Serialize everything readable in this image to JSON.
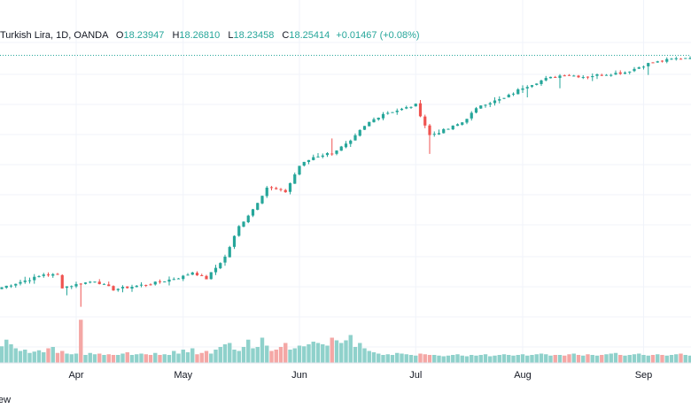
{
  "legend": {
    "symbol": "Turkish Lira, 1D, OANDA",
    "open_label": "O",
    "open": "18.23947",
    "high_label": "H",
    "high": "18.26810",
    "low_label": "L",
    "low": "18.23458",
    "close_label": "C",
    "close": "18.25414",
    "change": "+0.01467 (+0.08%)"
  },
  "footer": {
    "text": "ew"
  },
  "colors": {
    "up": "#26a69a",
    "down": "#ef5350",
    "up_vol": "#8fd1cb",
    "down_vol": "#f4a7a5",
    "grid": "#f0f3fa"
  },
  "chart_data": {
    "type": "candlestick",
    "title": "Turkish Lira, 1D, OANDA",
    "x_axis": {
      "tick_labels": [
        "Apr",
        "May",
        "Jun",
        "Jul",
        "Aug",
        "Sep"
      ]
    },
    "y_axis": {
      "range": [
        17.55,
        18.3
      ],
      "visible_labels": false
    },
    "last_price_line": 18.25414,
    "series": [
      {
        "name": "price",
        "anchors": [
          [
            0,
            17.72
          ],
          [
            8,
            17.745
          ],
          [
            9,
            17.75
          ],
          [
            12,
            17.748
          ],
          [
            13,
            17.72
          ],
          [
            20,
            17.735
          ],
          [
            24,
            17.715
          ],
          [
            33,
            17.73
          ],
          [
            39,
            17.745
          ],
          [
            41,
            17.755
          ],
          [
            44,
            17.74
          ],
          [
            48,
            17.79
          ],
          [
            51,
            17.86
          ],
          [
            54,
            17.9
          ],
          [
            57,
            17.95
          ],
          [
            61,
            17.94
          ],
          [
            64,
            18.0
          ],
          [
            67,
            18.02
          ],
          [
            71,
            18.03
          ],
          [
            75,
            18.055
          ],
          [
            77,
            18.08
          ],
          [
            79,
            18.1
          ],
          [
            82,
            18.12
          ],
          [
            86,
            18.13
          ],
          [
            89,
            18.14
          ],
          [
            92,
            18.07
          ],
          [
            96,
            18.085
          ],
          [
            99,
            18.1
          ],
          [
            103,
            18.14
          ],
          [
            108,
            18.155
          ],
          [
            112,
            18.18
          ],
          [
            117,
            18.2
          ],
          [
            121,
            18.21
          ],
          [
            125,
            18.205
          ],
          [
            129,
            18.21
          ],
          [
            134,
            18.215
          ],
          [
            139,
            18.235
          ],
          [
            144,
            18.245
          ],
          [
            148,
            18.25
          ]
        ]
      },
      {
        "name": "volume",
        "values": [
          25,
          35,
          28,
          22,
          18,
          20,
          15,
          17,
          19,
          16,
          22,
          24,
          15,
          18,
          14,
          13,
          14,
          65,
          12,
          15,
          13,
          14,
          12,
          13,
          12,
          12,
          14,
          16,
          12,
          13,
          14,
          13,
          12,
          15,
          12,
          13,
          12,
          18,
          14,
          20,
          16,
          22,
          13,
          15,
          18,
          14,
          20,
          24,
          28,
          30,
          20,
          18,
          24,
          35,
          22,
          24,
          38,
          26,
          18,
          20,
          24,
          30,
          20,
          22,
          26,
          25,
          28,
          32,
          30,
          28,
          26,
          38,
          34,
          30,
          34,
          42,
          24,
          30,
          22,
          18,
          16,
          14,
          12,
          13,
          12,
          15,
          14,
          13,
          12,
          11,
          14,
          13,
          12,
          12,
          11,
          10,
          11,
          12,
          13,
          11,
          10,
          12,
          11,
          12,
          13,
          10,
          11,
          12,
          13,
          12,
          11,
          12,
          13,
          11,
          12,
          13,
          14,
          13,
          11,
          12,
          12,
          11,
          13,
          14,
          12,
          11,
          13,
          12,
          11,
          12,
          13,
          14,
          15,
          12,
          11,
          12,
          13,
          14,
          12,
          11,
          12,
          13,
          12,
          11,
          12,
          13,
          14,
          12,
          11
        ]
      }
    ]
  }
}
